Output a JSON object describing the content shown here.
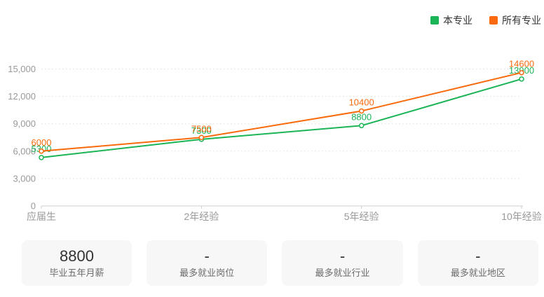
{
  "legend": {
    "position": "top-right",
    "items": [
      {
        "label": "本专业",
        "color": "#1bb457"
      },
      {
        "label": "所有专业",
        "color": "#f96a0c"
      }
    ]
  },
  "chart_data": {
    "type": "line",
    "categories": [
      "应届生",
      "2年经验",
      "5年经验",
      "10年经验"
    ],
    "series": [
      {
        "name": "本专业",
        "color": "#1bb457",
        "values": [
          5300,
          7300,
          8800,
          13900
        ]
      },
      {
        "name": "所有专业",
        "color": "#f96a0c",
        "values": [
          6000,
          7500,
          10400,
          14600
        ]
      }
    ],
    "ylim": [
      0,
      15000
    ],
    "yticks": [
      {
        "value": 0,
        "label": "0"
      },
      {
        "value": 3000,
        "label": "3,000"
      },
      {
        "value": 6000,
        "label": "6,000"
      },
      {
        "value": 9000,
        "label": "9,000"
      },
      {
        "value": 12000,
        "label": "12,000"
      },
      {
        "value": 15000,
        "label": "15,000"
      }
    ],
    "grid": true,
    "grid_style": "dotted",
    "axis_color": "#cccccc",
    "tick_label_color": "#999999",
    "data_labels": true,
    "legend_position": "top-right"
  },
  "summary_cards": [
    {
      "value": "8800",
      "label": "毕业五年月薪"
    },
    {
      "value": "-",
      "label": "最多就业岗位"
    },
    {
      "value": "-",
      "label": "最多就业行业"
    },
    {
      "value": "-",
      "label": "最多就业地区"
    }
  ]
}
